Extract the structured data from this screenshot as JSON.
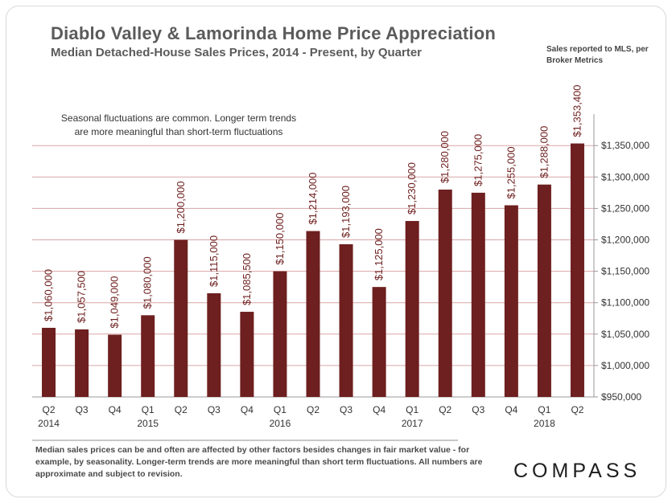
{
  "header": {
    "title": "Diablo Valley & Lamorinda Home Price Appreciation",
    "subtitle": "Median Detached-House Sales Prices, 2014 - Present, by Quarter",
    "source_note": "Sales reported to MLS, per Broker Metrics"
  },
  "annotation": {
    "line1": "Seasonal fluctuations are common. Longer term trends",
    "line2": "are more meaningful than short-term fluctuations"
  },
  "footer": {
    "note": "Median sales prices can be and often are affected by other factors besides changes in fair market value - for example, by seasonality. Longer-term trends are more meaningful than short term fluctuations. All numbers are approximate and subject to revision.",
    "logo": "COMPASS"
  },
  "colors": {
    "bar": "#6e1f1f",
    "gridline": "#d9a6a6",
    "axis": "#999999",
    "text": "#333333"
  },
  "chart_data": {
    "type": "bar",
    "title": "Diablo Valley & Lamorinda Home Price Appreciation",
    "subtitle": "Median Detached-House Sales Prices, 2014 - Present, by Quarter",
    "categories": [
      "Q2 2014",
      "Q3 2014",
      "Q4 2014",
      "Q1 2015",
      "Q2 2015",
      "Q3 2015",
      "Q4 2015",
      "Q1 2016",
      "Q2 2016",
      "Q3 2016",
      "Q4 2016",
      "Q1 2017",
      "Q2 2017",
      "Q3 2017",
      "Q4 2017",
      "Q1 2018",
      "Q2 2018"
    ],
    "x_tick_quarters": [
      "Q2",
      "Q3",
      "Q4",
      "Q1",
      "Q2",
      "Q3",
      "Q4",
      "Q1",
      "Q2",
      "Q3",
      "Q4",
      "Q1",
      "Q2",
      "Q3",
      "Q4",
      "Q1",
      "Q2"
    ],
    "x_tick_years": [
      "2014",
      "",
      "",
      "2015",
      "",
      "",
      "",
      "2016",
      "",
      "",
      "",
      "2017",
      "",
      "",
      "",
      "2018",
      ""
    ],
    "values": [
      1060000,
      1057500,
      1049000,
      1080000,
      1200000,
      1115000,
      1085500,
      1150000,
      1214000,
      1193000,
      1125000,
      1230000,
      1280000,
      1275000,
      1255000,
      1288000,
      1353400
    ],
    "value_labels": [
      "$1,060,000",
      "$1,057,500",
      "$1,049,000",
      "$1,080,000",
      "$1,200,000",
      "$1,115,000",
      "$1,085,500",
      "$1,150,000",
      "$1,214,000",
      "$1,193,000",
      "$1,125,000",
      "$1,230,000",
      "$1,280,000",
      "$1,275,000",
      "$1,255,000",
      "$1,288,000",
      "$1,353,400"
    ],
    "ylim": [
      950000,
      1400000
    ],
    "y_ticks": [
      950000,
      1000000,
      1050000,
      1100000,
      1150000,
      1200000,
      1250000,
      1300000,
      1350000
    ],
    "y_tick_labels": [
      "$950,000",
      "$1,000,000",
      "$1,050,000",
      "$1,100,000",
      "$1,150,000",
      "$1,200,000",
      "$1,250,000",
      "$1,300,000",
      "$1,350,000"
    ],
    "y_axis_side": "right",
    "grid": true,
    "xlabel": "",
    "ylabel": ""
  }
}
